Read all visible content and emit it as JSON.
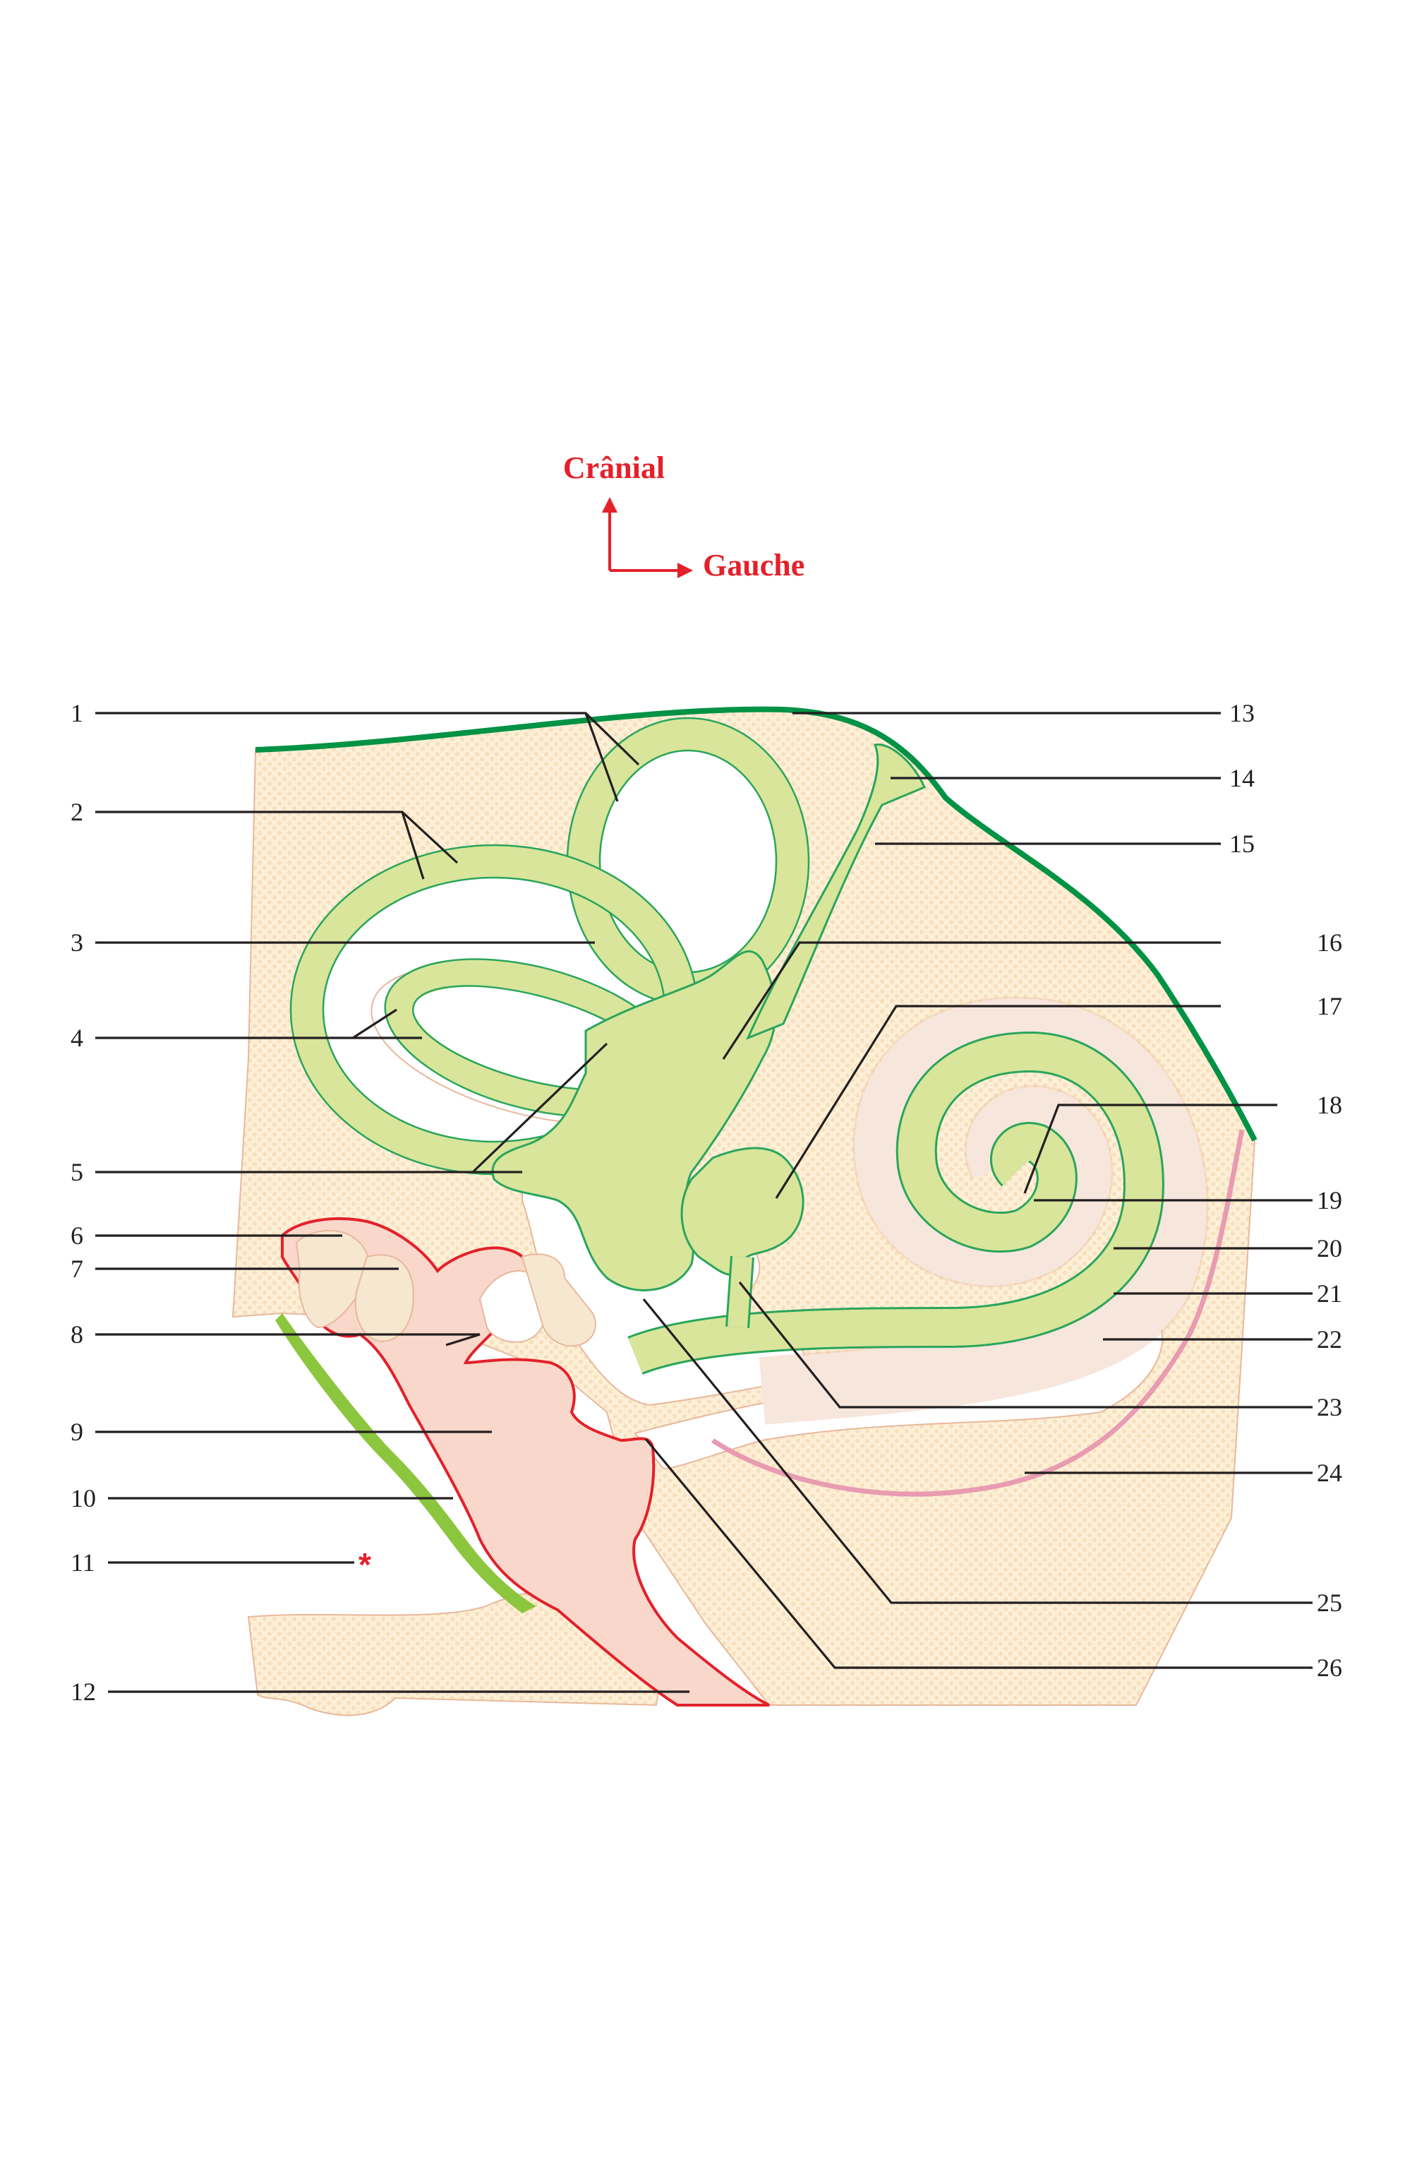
{
  "orientation": {
    "cranial": "Crânial",
    "left": "Gauche",
    "arrow_color": "#e3212b"
  },
  "colors": {
    "bone": "#fdf0d8",
    "bone_outline": "#e8b89c",
    "membranous_labyrinth": "#d8e59b",
    "labyrinth_edge": "#2aa55b",
    "dura_line": "#009245",
    "tympanic_cavity": "#f9d7cb",
    "cavity_outline": "#e3212b",
    "pink_membrane": "#e89bb1",
    "green_mucosa": "#8cc63f"
  },
  "labels": {
    "l1": "1",
    "l2": "2",
    "l3": "3",
    "l4": "4",
    "l5": "5",
    "l6": "6",
    "l7": "7",
    "l8": "8",
    "l9": "9",
    "l10": "10",
    "l11": "11",
    "l12": "12",
    "l13": "13",
    "l14": "14",
    "l15": "15",
    "l16": "16",
    "l17": "17",
    "l18": "18",
    "l19": "19",
    "l20": "20",
    "l21": "21",
    "l22": "22",
    "l23": "23",
    "l24": "24",
    "l25": "25",
    "l26": "26"
  },
  "marker_11": "*"
}
